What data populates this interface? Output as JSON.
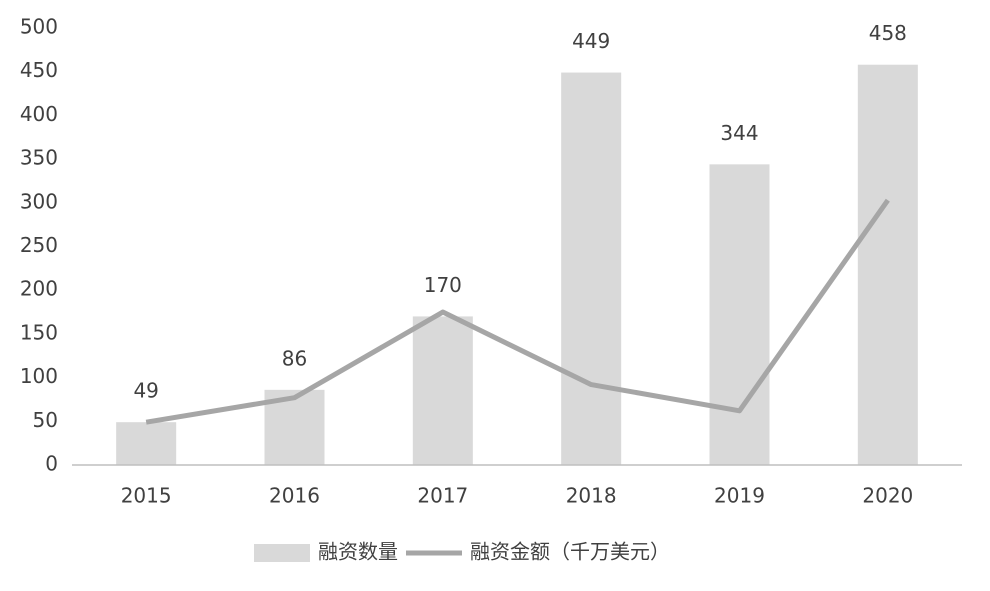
{
  "chart_data": {
    "type": "bar",
    "categories": [
      "2015",
      "2016",
      "2017",
      "2018",
      "2019",
      "2020"
    ],
    "series": [
      {
        "name": "融资数量",
        "type": "bar",
        "color": "#d9d9d9",
        "values": [
          49,
          86,
          170,
          449,
          344,
          458
        ],
        "show_labels": true
      },
      {
        "name": "融资金额（千万美元）",
        "type": "line",
        "color": "#a6a6a6",
        "values": [
          49,
          77,
          175,
          92,
          62,
          303
        ]
      }
    ],
    "ylim": [
      0,
      500
    ],
    "yticks": [
      0,
      50,
      100,
      150,
      200,
      250,
      300,
      350,
      400,
      450,
      500
    ],
    "grid": false,
    "legend": "bottom"
  }
}
